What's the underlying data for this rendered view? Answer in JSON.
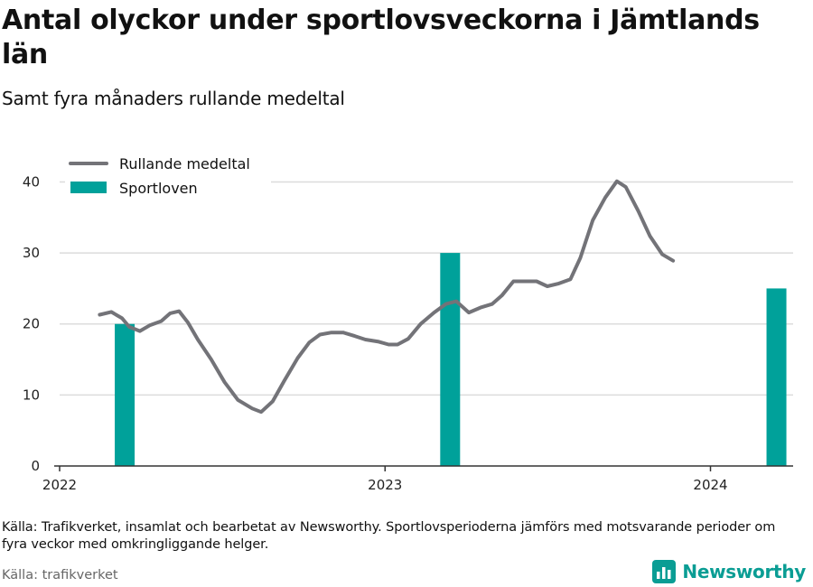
{
  "header": {
    "title": "Antal olyckor under sportlovsveckorna i Jämtlands län",
    "subtitle": "Samt fyra månaders rullande medeltal"
  },
  "footer": {
    "note": "Källa: Trafikverket, insamlat och bearbetat av Newsworthy. Sportlovsperioderna jämförs med motsvarande perioder om fyra veckor med omkringliggande helger.",
    "source": "Källa: trafikverket",
    "brand": "Newsworthy"
  },
  "colors": {
    "line": "#737378",
    "bar": "#00a19a",
    "grid": "#dcdcdc",
    "brand": "#0a9d94"
  },
  "chart_data": {
    "type": "line",
    "title": "Antal olyckor under sportlovsveckorna i Jämtlands län",
    "subtitle": "Samt fyra månaders rullande medeltal",
    "xlabel": "",
    "ylabel": "",
    "ylim": [
      0,
      40
    ],
    "yticks": [
      0,
      10,
      20,
      30,
      40
    ],
    "xticks": [
      "2022",
      "2023",
      "2024"
    ],
    "grid": true,
    "legend_position": "top-left",
    "series": [
      {
        "name": "Rullande medeltal",
        "kind": "line",
        "points": [
          [
            "2022-02-15",
            21.3
          ],
          [
            "2022-02-28",
            21.7
          ],
          [
            "2022-03-12",
            20.8
          ],
          [
            "2022-03-20",
            19.6
          ],
          [
            "2022-04-01",
            19.0
          ],
          [
            "2022-04-12",
            19.8
          ],
          [
            "2022-04-25",
            20.4
          ],
          [
            "2022-05-05",
            21.5
          ],
          [
            "2022-05-15",
            21.8
          ],
          [
            "2022-05-25",
            20.2
          ],
          [
            "2022-06-05",
            17.8
          ],
          [
            "2022-06-20",
            15.0
          ],
          [
            "2022-07-05",
            11.8
          ],
          [
            "2022-07-20",
            9.3
          ],
          [
            "2022-08-05",
            8.1
          ],
          [
            "2022-08-15",
            7.6
          ],
          [
            "2022-08-28",
            9.1
          ],
          [
            "2022-09-10",
            12.0
          ],
          [
            "2022-09-25",
            15.2
          ],
          [
            "2022-10-08",
            17.4
          ],
          [
            "2022-10-20",
            18.5
          ],
          [
            "2022-11-02",
            18.8
          ],
          [
            "2022-11-15",
            18.8
          ],
          [
            "2022-11-28",
            18.3
          ],
          [
            "2022-12-10",
            17.8
          ],
          [
            "2022-12-25",
            17.5
          ],
          [
            "2023-01-05",
            17.1
          ],
          [
            "2023-01-15",
            17.1
          ],
          [
            "2023-01-27",
            17.9
          ],
          [
            "2023-02-10",
            20.0
          ],
          [
            "2023-02-25",
            21.6
          ],
          [
            "2023-03-10",
            22.8
          ],
          [
            "2023-03-22",
            23.2
          ],
          [
            "2023-04-05",
            21.6
          ],
          [
            "2023-04-18",
            22.3
          ],
          [
            "2023-05-01",
            22.8
          ],
          [
            "2023-05-12",
            24.0
          ],
          [
            "2023-05-25",
            26.0
          ],
          [
            "2023-06-07",
            26.0
          ],
          [
            "2023-06-20",
            26.0
          ],
          [
            "2023-07-02",
            25.3
          ],
          [
            "2023-07-15",
            25.7
          ],
          [
            "2023-07-28",
            26.3
          ],
          [
            "2023-08-08",
            29.3
          ],
          [
            "2023-08-22",
            34.6
          ],
          [
            "2023-09-05",
            37.8
          ],
          [
            "2023-09-18",
            40.1
          ],
          [
            "2023-09-28",
            39.3
          ],
          [
            "2023-10-12",
            35.9
          ],
          [
            "2023-10-25",
            32.4
          ],
          [
            "2023-11-08",
            29.8
          ],
          [
            "2023-11-20",
            28.9
          ]
        ]
      },
      {
        "name": "Sportloven",
        "kind": "bar",
        "points": [
          [
            "2022-03",
            20
          ],
          [
            "2023-03",
            30
          ],
          [
            "2024-03",
            25
          ]
        ]
      }
    ]
  }
}
